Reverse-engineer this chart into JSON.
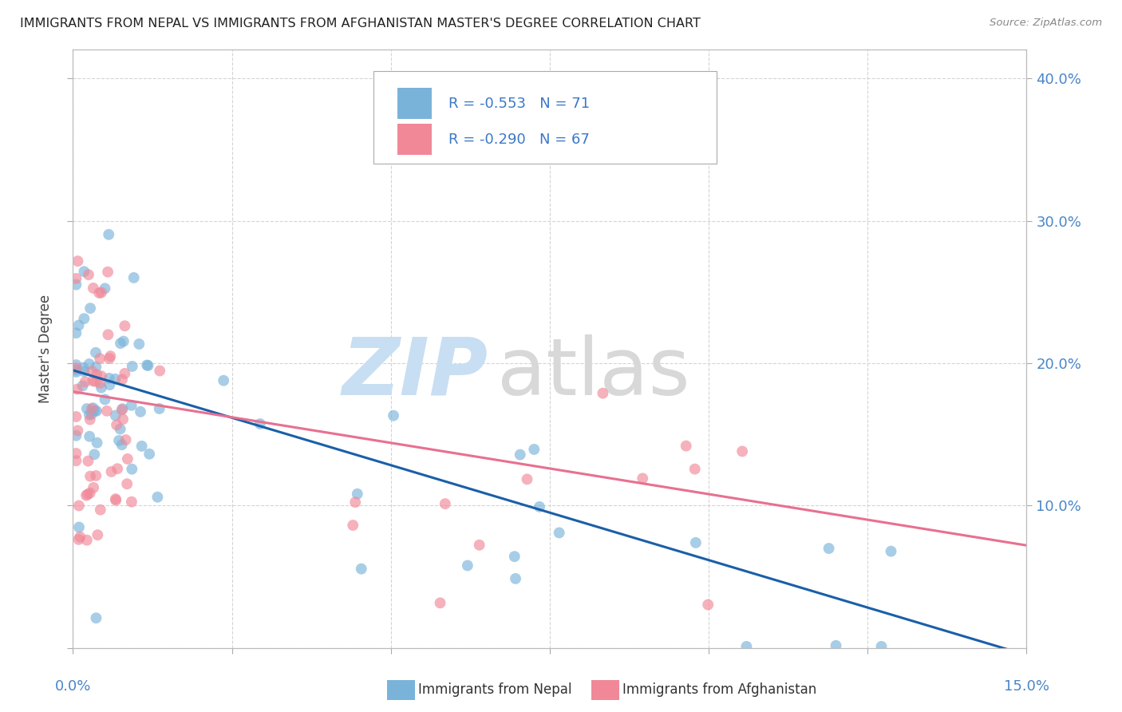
{
  "title": "IMMIGRANTS FROM NEPAL VS IMMIGRANTS FROM AFGHANISTAN MASTER'S DEGREE CORRELATION CHART",
  "source": "Source: ZipAtlas.com",
  "ylabel": "Master's Degree",
  "nepal_color": "#7ab3d9",
  "afghanistan_color": "#f08898",
  "nepal_line_color": "#1a5fa8",
  "afghanistan_line_color": "#e87090",
  "background_color": "#ffffff",
  "grid_color": "#d0d0d0",
  "xlim": [
    0.0,
    0.15
  ],
  "ylim": [
    0.0,
    0.42
  ],
  "nepal_line_x0": 0.0,
  "nepal_line_y0": 0.195,
  "nepal_line_x1": 0.15,
  "nepal_line_y1": -0.005,
  "afg_line_x0": 0.0,
  "afg_line_y0": 0.18,
  "afg_line_x1": 0.15,
  "afg_line_y1": 0.072,
  "legend_R_nepal": "R = -0.553",
  "legend_N_nepal": "N = 71",
  "legend_R_afg": "R = -0.290",
  "legend_N_afg": "N = 67",
  "watermark_ZIP": "ZIP",
  "watermark_atlas": "atlas",
  "right_ytick_labels": [
    "10.0%",
    "20.0%",
    "30.0%",
    "40.0%"
  ],
  "right_ytick_vals": [
    0.1,
    0.2,
    0.3,
    0.4
  ],
  "bottom_label_nepal": "Immigrants from Nepal",
  "bottom_label_afg": "Immigrants from Afghanistan"
}
